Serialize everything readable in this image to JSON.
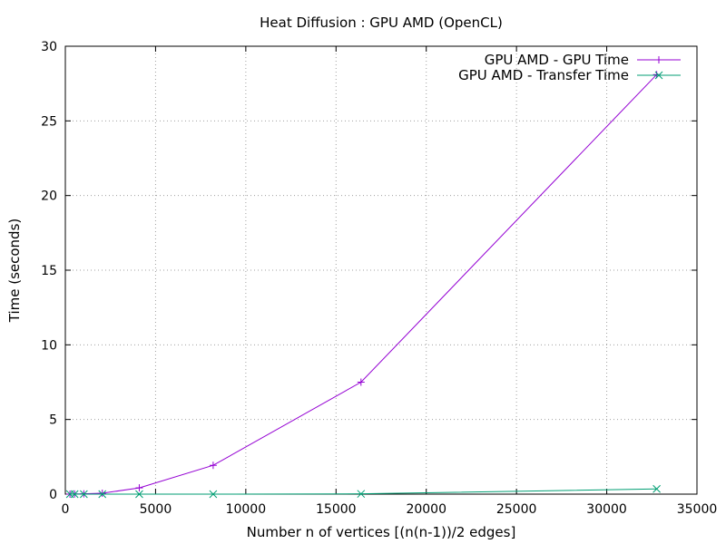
{
  "chart_data": {
    "type": "line",
    "title": "Heat Diffusion : GPU AMD (OpenCL)",
    "xlabel": "Number n of vertices [(n(n-1))/2 edges]",
    "ylabel": "Time (seconds)",
    "xlim": [
      0,
      35000
    ],
    "ylim": [
      0,
      30
    ],
    "x_ticks": [
      0,
      5000,
      10000,
      15000,
      20000,
      25000,
      30000,
      35000
    ],
    "y_ticks": [
      0,
      5,
      10,
      15,
      20,
      25,
      30
    ],
    "grid": true,
    "legend_position": "top-right",
    "series": [
      {
        "name": "GPU AMD - GPU Time",
        "color": "#9400d3",
        "marker": "plus",
        "x": [
          256,
          512,
          1024,
          2048,
          4096,
          8192,
          16384,
          32768
        ],
        "y": [
          0.0,
          0.01,
          0.02,
          0.06,
          0.42,
          1.93,
          7.5,
          28.1
        ]
      },
      {
        "name": "GPU AMD - Transfer Time",
        "color": "#009e73",
        "marker": "cross",
        "x": [
          256,
          512,
          1024,
          2048,
          4096,
          8192,
          16384,
          32768
        ],
        "y": [
          0.0,
          0.0,
          0.0,
          0.0,
          0.0,
          0.0,
          0.02,
          0.35
        ]
      }
    ]
  }
}
